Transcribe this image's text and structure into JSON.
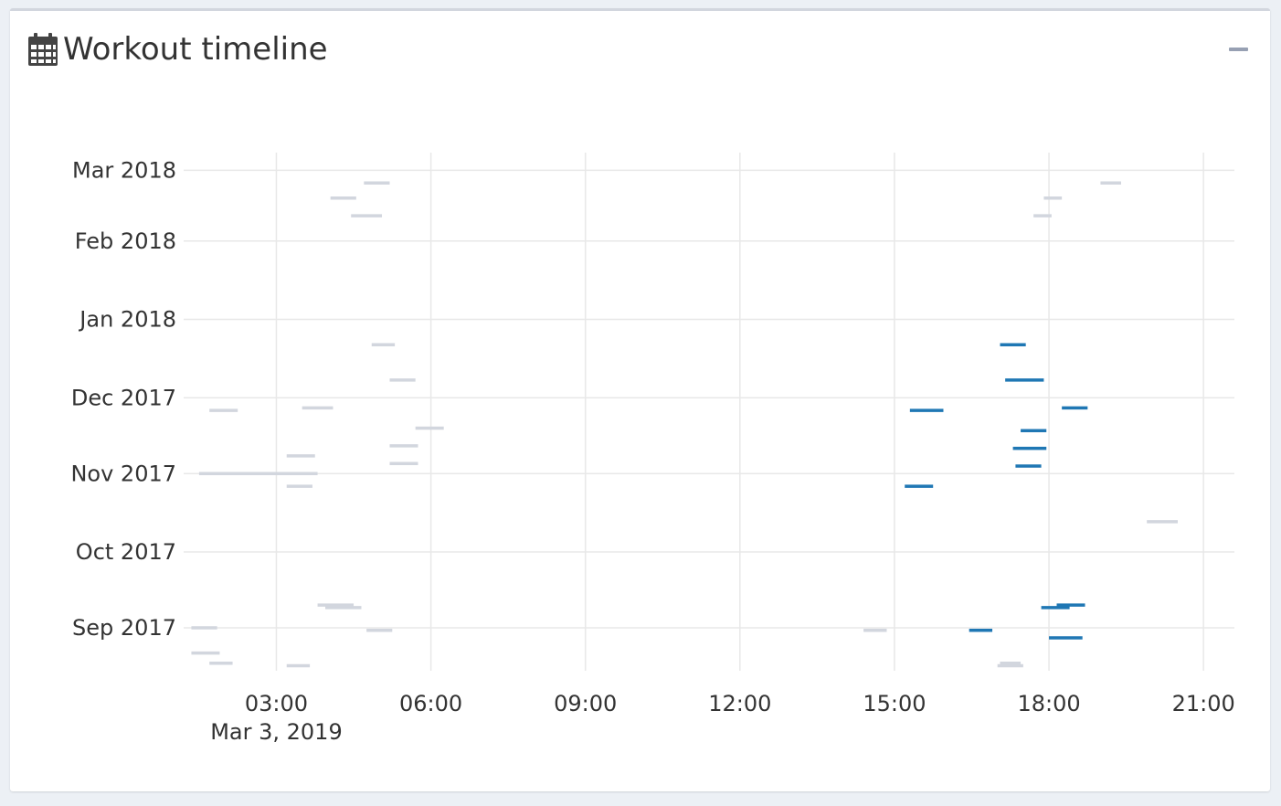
{
  "panel": {
    "title": "Workout timeline",
    "title_icon": "calendar-icon",
    "collapse_icon": "minus-icon"
  },
  "colors": {
    "highlight": "#1f77b4",
    "muted": "#d2d6de",
    "grid": "#e8e8e8",
    "text": "#333333"
  },
  "chart_data": {
    "type": "scatter",
    "title": "",
    "xlabel": "",
    "ylabel": "",
    "x_axis": {
      "kind": "time-of-day",
      "range_hours": [
        1.2,
        21.6
      ],
      "ticks": [
        {
          "hour": 3,
          "label": "03:00",
          "sublabel": "Mar 3, 2019"
        },
        {
          "hour": 6,
          "label": "06:00"
        },
        {
          "hour": 9,
          "label": "09:00"
        },
        {
          "hour": 12,
          "label": "12:00"
        },
        {
          "hour": 15,
          "label": "15:00"
        },
        {
          "hour": 18,
          "label": "18:00"
        },
        {
          "hour": 21,
          "label": "21:00"
        }
      ]
    },
    "y_axis": {
      "kind": "date",
      "range": [
        "2017-08-15",
        "2018-03-08"
      ],
      "ticks": [
        {
          "date": "2017-09-01",
          "label": "Sep 2017"
        },
        {
          "date": "2017-10-01",
          "label": "Oct 2017"
        },
        {
          "date": "2017-11-01",
          "label": "Nov 2017"
        },
        {
          "date": "2017-12-01",
          "label": "Dec 2017"
        },
        {
          "date": "2018-01-01",
          "label": "Jan 2018"
        },
        {
          "date": "2018-02-01",
          "label": "Feb 2018"
        },
        {
          "date": "2018-03-01",
          "label": "Mar 2018"
        }
      ]
    },
    "grid": true,
    "series": [
      {
        "role": "highlight",
        "segments": [
          {
            "date": "2017-12-22",
            "start": 17.05,
            "end": 17.55
          },
          {
            "date": "2017-12-08",
            "start": 17.15,
            "end": 17.9
          },
          {
            "date": "2017-11-26",
            "start": 15.3,
            "end": 15.95
          },
          {
            "date": "2017-11-27",
            "start": 18.25,
            "end": 18.75
          },
          {
            "date": "2017-11-18",
            "start": 17.45,
            "end": 17.95
          },
          {
            "date": "2017-11-11",
            "start": 17.3,
            "end": 17.95
          },
          {
            "date": "2017-11-04",
            "start": 17.35,
            "end": 17.85
          },
          {
            "date": "2017-10-27",
            "start": 15.2,
            "end": 15.75
          },
          {
            "date": "2017-09-10",
            "start": 18.15,
            "end": 18.7
          },
          {
            "date": "2017-09-09",
            "start": 17.85,
            "end": 18.4
          },
          {
            "date": "2017-08-31",
            "start": 16.45,
            "end": 16.9
          },
          {
            "date": "2017-08-28",
            "start": 18.0,
            "end": 18.65
          }
        ]
      },
      {
        "role": "muted",
        "segments": [
          {
            "date": "2018-02-24",
            "start": 4.7,
            "end": 5.2
          },
          {
            "date": "2018-02-18",
            "start": 4.05,
            "end": 4.55
          },
          {
            "date": "2018-02-11",
            "start": 4.45,
            "end": 5.05
          },
          {
            "date": "2018-02-24",
            "start": 19.0,
            "end": 19.4
          },
          {
            "date": "2018-02-18",
            "start": 17.9,
            "end": 18.25
          },
          {
            "date": "2018-02-11",
            "start": 17.7,
            "end": 18.05
          },
          {
            "date": "2017-12-22",
            "start": 4.85,
            "end": 5.3
          },
          {
            "date": "2017-12-08",
            "start": 5.2,
            "end": 5.7
          },
          {
            "date": "2017-11-26",
            "start": 1.7,
            "end": 2.25
          },
          {
            "date": "2017-11-27",
            "start": 3.5,
            "end": 4.1
          },
          {
            "date": "2017-11-19",
            "start": 5.7,
            "end": 6.25
          },
          {
            "date": "2017-11-12",
            "start": 5.2,
            "end": 5.75
          },
          {
            "date": "2017-11-08",
            "start": 3.2,
            "end": 3.75
          },
          {
            "date": "2017-11-05",
            "start": 5.2,
            "end": 5.75
          },
          {
            "date": "2017-11-01",
            "start": 1.5,
            "end": 3.8
          },
          {
            "date": "2017-10-27",
            "start": 3.2,
            "end": 3.7
          },
          {
            "date": "2017-10-13",
            "start": 19.9,
            "end": 20.5
          },
          {
            "date": "2017-09-10",
            "start": 3.8,
            "end": 4.5
          },
          {
            "date": "2017-09-09",
            "start": 3.95,
            "end": 4.65
          },
          {
            "date": "2017-09-01",
            "start": 1.35,
            "end": 1.85
          },
          {
            "date": "2017-08-31",
            "start": 4.75,
            "end": 5.25
          },
          {
            "date": "2017-08-31",
            "start": 14.4,
            "end": 14.85
          },
          {
            "date": "2017-08-22",
            "start": 1.35,
            "end": 1.9
          },
          {
            "date": "2017-08-18",
            "start": 1.7,
            "end": 2.15
          },
          {
            "date": "2017-08-17",
            "start": 3.2,
            "end": 3.65
          },
          {
            "date": "2017-08-18",
            "start": 17.05,
            "end": 17.45
          },
          {
            "date": "2017-08-17",
            "start": 17.0,
            "end": 17.5
          }
        ]
      }
    ]
  }
}
